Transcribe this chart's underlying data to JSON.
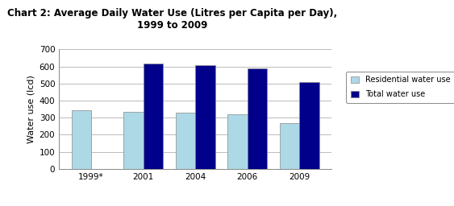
{
  "title": "Chart 2: Average Daily Water Use (Litres per Capita per Day),\n1999 to 2009",
  "ylabel": "Water use (lcd)",
  "categories": [
    "1999*",
    "2001",
    "2004",
    "2006",
    "2009"
  ],
  "residential": [
    345,
    333,
    328,
    322,
    268
  ],
  "total": [
    0,
    618,
    607,
    590,
    508
  ],
  "residential_color": "#add8e6",
  "total_color": "#00008b",
  "ylim": [
    0,
    700
  ],
  "yticks": [
    0,
    100,
    200,
    300,
    400,
    500,
    600,
    700
  ],
  "bar_width": 0.38,
  "legend_labels": [
    "Residential water use",
    "Total water use"
  ],
  "bg_color": "#ffffff",
  "grid_color": "#b0b0b0"
}
